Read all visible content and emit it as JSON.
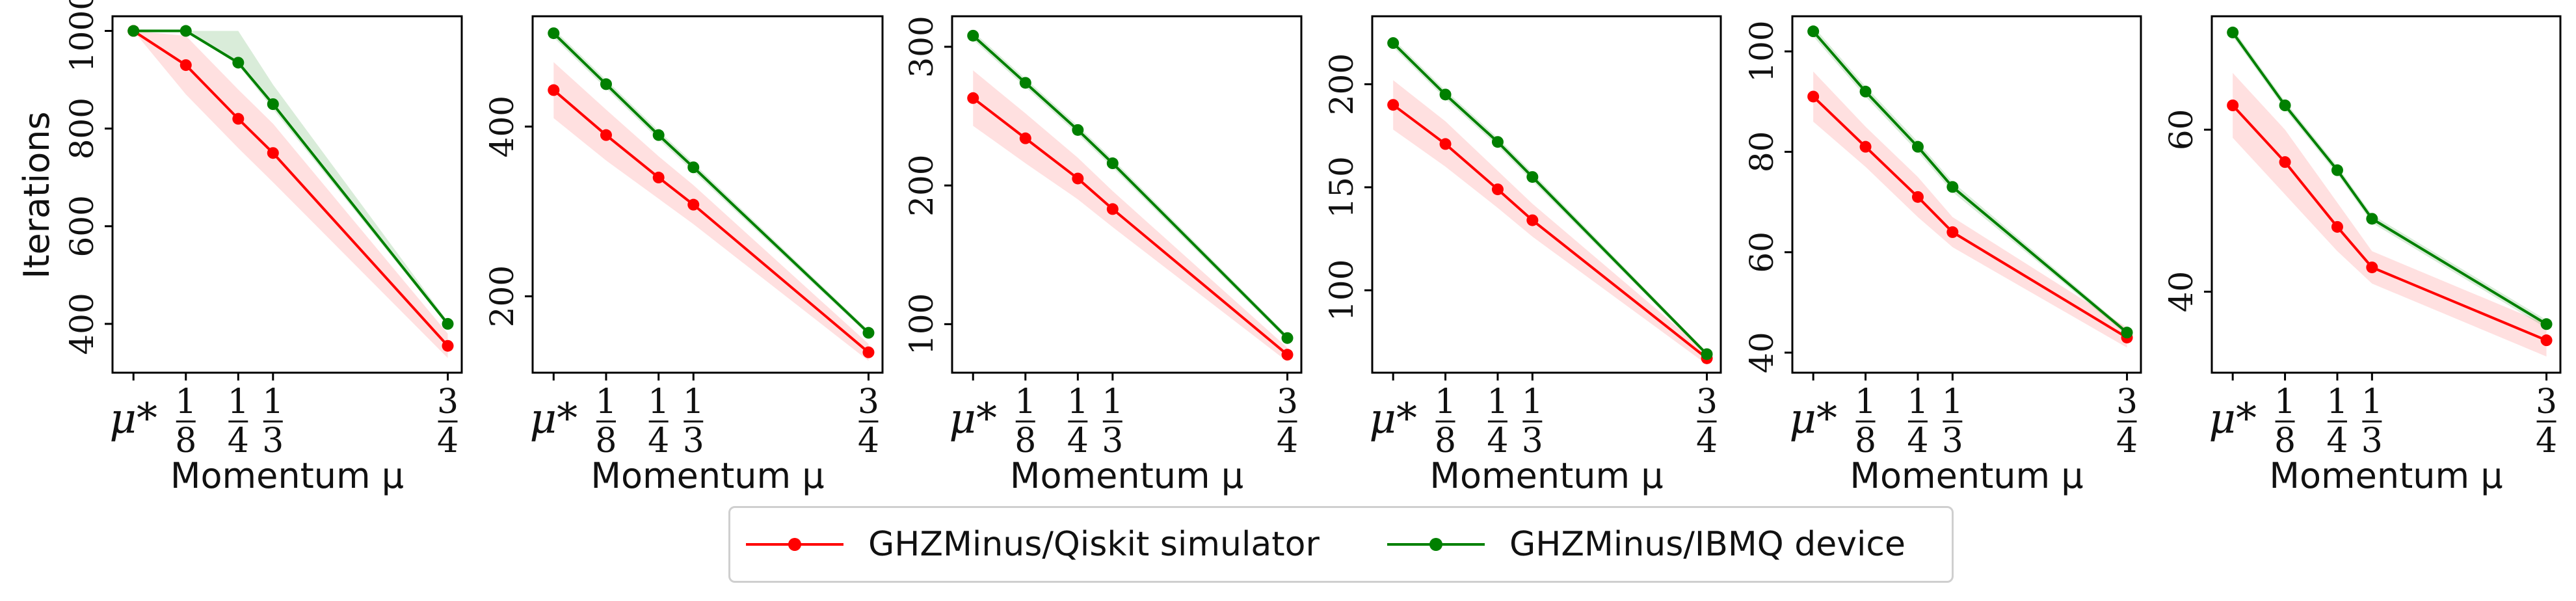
{
  "chart_data": [
    {
      "type": "line",
      "x_ticks": [
        "μ*",
        "1/8",
        "1/4",
        "1/3",
        "3/4"
      ],
      "x": [
        0,
        0.125,
        0.25,
        0.333,
        0.75
      ],
      "xlabel": "Momentum μ",
      "ylabel": "Iterations",
      "ylim": [
        300,
        1030
      ],
      "yticks": [
        400,
        600,
        800,
        1000
      ],
      "series": [
        {
          "name": "GHZMinus/Qiskit simulator",
          "color": "#ff0000",
          "values": [
            1000,
            930,
            820,
            750,
            355
          ],
          "lower": [
            1000,
            870,
            760,
            690,
            330
          ],
          "upper": [
            1000,
            990,
            880,
            810,
            380
          ]
        },
        {
          "name": "GHZMinus/IBMQ device",
          "color": "#008000",
          "values": [
            1000,
            1000,
            935,
            850,
            400
          ],
          "lower": [
            1000,
            1000,
            930,
            840,
            395
          ],
          "upper": [
            1000,
            1000,
            1000,
            890,
            405
          ]
        }
      ]
    },
    {
      "type": "line",
      "x_ticks": [
        "μ*",
        "1/8",
        "1/4",
        "1/3",
        "3/4"
      ],
      "x": [
        0,
        0.125,
        0.25,
        0.333,
        0.75
      ],
      "xlabel": "Momentum μ",
      "ylabel": "",
      "ylim": [
        110,
        530
      ],
      "yticks": [
        200,
        400
      ],
      "series": [
        {
          "name": "GHZMinus/Qiskit simulator",
          "color": "#ff0000",
          "values": [
            443,
            390,
            340,
            308,
            134
          ],
          "lower": [
            410,
            360,
            315,
            285,
            124
          ],
          "upper": [
            476,
            420,
            365,
            331,
            144
          ]
        },
        {
          "name": "GHZMinus/IBMQ device",
          "color": "#008000",
          "values": [
            510,
            450,
            390,
            352,
            157
          ],
          "lower": [
            505,
            445,
            385,
            347,
            154
          ],
          "upper": [
            515,
            455,
            395,
            357,
            160
          ]
        }
      ]
    },
    {
      "type": "line",
      "x_ticks": [
        "μ*",
        "1/8",
        "1/4",
        "1/3",
        "3/4"
      ],
      "x": [
        0,
        0.125,
        0.25,
        0.333,
        0.75
      ],
      "xlabel": "Momentum μ",
      "ylabel": "",
      "ylim": [
        65,
        322
      ],
      "yticks": [
        100,
        200,
        300
      ],
      "series": [
        {
          "name": "GHZMinus/Qiskit simulator",
          "color": "#ff0000",
          "values": [
            263,
            234,
            205,
            183,
            78
          ],
          "lower": [
            243,
            216,
            190,
            170,
            73
          ],
          "upper": [
            283,
            252,
            220,
            196,
            83
          ]
        },
        {
          "name": "GHZMinus/IBMQ device",
          "color": "#008000",
          "values": [
            308,
            274,
            240,
            216,
            90
          ],
          "lower": [
            305,
            271,
            237,
            213,
            88
          ],
          "upper": [
            311,
            277,
            243,
            219,
            92
          ]
        }
      ]
    },
    {
      "type": "line",
      "x_ticks": [
        "μ*",
        "1/8",
        "1/4",
        "1/3",
        "3/4"
      ],
      "x": [
        0,
        0.125,
        0.25,
        0.333,
        0.75
      ],
      "xlabel": "Momentum μ",
      "ylabel": "",
      "ylim": [
        60,
        233
      ],
      "yticks": [
        100,
        150,
        200
      ],
      "series": [
        {
          "name": "GHZMinus/Qiskit simulator",
          "color": "#ff0000",
          "values": [
            190,
            171,
            149,
            134,
            67
          ],
          "lower": [
            178,
            160,
            140,
            126,
            64
          ],
          "upper": [
            202,
            182,
            158,
            142,
            70
          ]
        },
        {
          "name": "GHZMinus/IBMQ device",
          "color": "#008000",
          "values": [
            220,
            195,
            172,
            155,
            69
          ],
          "lower": [
            218,
            193,
            170,
            153,
            68
          ],
          "upper": [
            222,
            197,
            174,
            157,
            70
          ]
        }
      ]
    },
    {
      "type": "line",
      "x_ticks": [
        "μ*",
        "1/8",
        "1/4",
        "1/3",
        "3/4"
      ],
      "x": [
        0,
        0.125,
        0.25,
        0.333,
        0.75
      ],
      "xlabel": "Momentum μ",
      "ylabel": "",
      "ylim": [
        36,
        107
      ],
      "yticks": [
        40,
        60,
        80,
        100
      ],
      "series": [
        {
          "name": "GHZMinus/Qiskit simulator",
          "color": "#ff0000",
          "values": [
            91,
            81,
            71,
            64,
            43
          ],
          "lower": [
            86,
            77,
            67,
            61,
            41
          ],
          "upper": [
            96,
            85,
            75,
            67,
            45
          ]
        },
        {
          "name": "GHZMinus/IBMQ device",
          "color": "#008000",
          "values": [
            104,
            92,
            81,
            73,
            44
          ],
          "lower": [
            103,
            91,
            80,
            72,
            43.5
          ],
          "upper": [
            105,
            93,
            82,
            74,
            44.5
          ]
        }
      ]
    },
    {
      "type": "line",
      "x_ticks": [
        "μ*",
        "1/8",
        "1/4",
        "1/3",
        "3/4"
      ],
      "x": [
        0,
        0.125,
        0.25,
        0.333,
        0.75
      ],
      "xlabel": "Momentum μ",
      "ylabel": "",
      "ylim": [
        30,
        74
      ],
      "yticks": [
        40,
        60
      ],
      "series": [
        {
          "name": "GHZMinus/Qiskit simulator",
          "color": "#ff0000",
          "values": [
            63,
            56,
            48,
            43,
            34
          ],
          "lower": [
            59,
            52,
            45,
            41,
            32
          ],
          "upper": [
            67,
            60,
            51,
            45,
            36
          ]
        },
        {
          "name": "GHZMinus/IBMQ device",
          "color": "#008000",
          "values": [
            72,
            63,
            55,
            49,
            36
          ],
          "lower": [
            71.5,
            62.5,
            54.5,
            48.5,
            35.5
          ],
          "upper": [
            72.5,
            63.5,
            55.5,
            49.5,
            36.5
          ]
        }
      ]
    }
  ],
  "legend": {
    "entries": [
      {
        "label": "GHZMinus/Qiskit simulator",
        "color": "#ff0000"
      },
      {
        "label": "GHZMinus/IBMQ device",
        "color": "#008000"
      }
    ],
    "location": "bottom-center"
  }
}
